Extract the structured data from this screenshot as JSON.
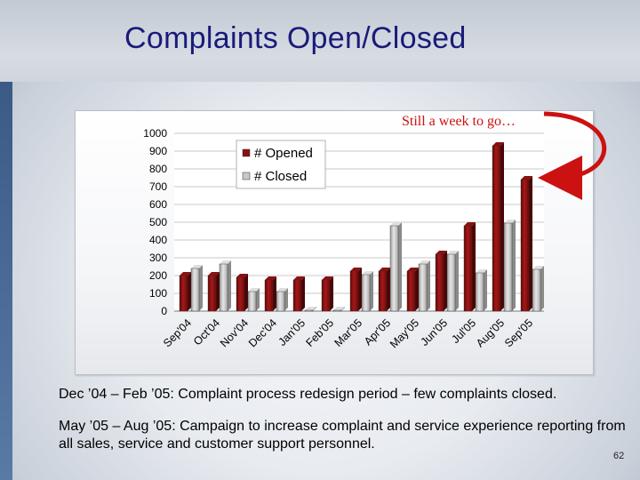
{
  "title": "Complaints Open/Closed",
  "annotation": "Still a week to go…",
  "notes": [
    "Dec ’04 – Feb ’05: Complaint process redesign period – few complaints closed.",
    "May ’05 – Aug ’05: Campaign to increase complaint and service experience reporting from all sales, service and customer support personnel."
  ],
  "page_number": "62",
  "colors": {
    "opened": "#8b1010",
    "closed": "#c8c8c8",
    "arrow": "#cc1111",
    "title": "#1a1a7a"
  },
  "chart_data": {
    "type": "bar",
    "title": "",
    "xlabel": "",
    "ylabel": "",
    "ylim": [
      0,
      1000
    ],
    "yticks": [
      0,
      100,
      200,
      300,
      400,
      500,
      600,
      700,
      800,
      900,
      1000
    ],
    "grid": true,
    "legend_position": "top-left",
    "categories": [
      "Sep'04",
      "Oct'04",
      "Nov'04",
      "Dec'04",
      "Jan'05",
      "Feb'05",
      "Mar'05",
      "Apr'05",
      "May'05",
      "Jun'05",
      "Jul'05",
      "Aug'05",
      "Sep'05"
    ],
    "series": [
      {
        "name": "# Opened",
        "values": [
          200,
          200,
          190,
          175,
          175,
          175,
          225,
          225,
          225,
          320,
          480,
          930,
          740
        ]
      },
      {
        "name": "# Closed",
        "values": [
          240,
          265,
          110,
          110,
          5,
          5,
          205,
          480,
          265,
          320,
          215,
          495,
          235
        ]
      }
    ]
  }
}
